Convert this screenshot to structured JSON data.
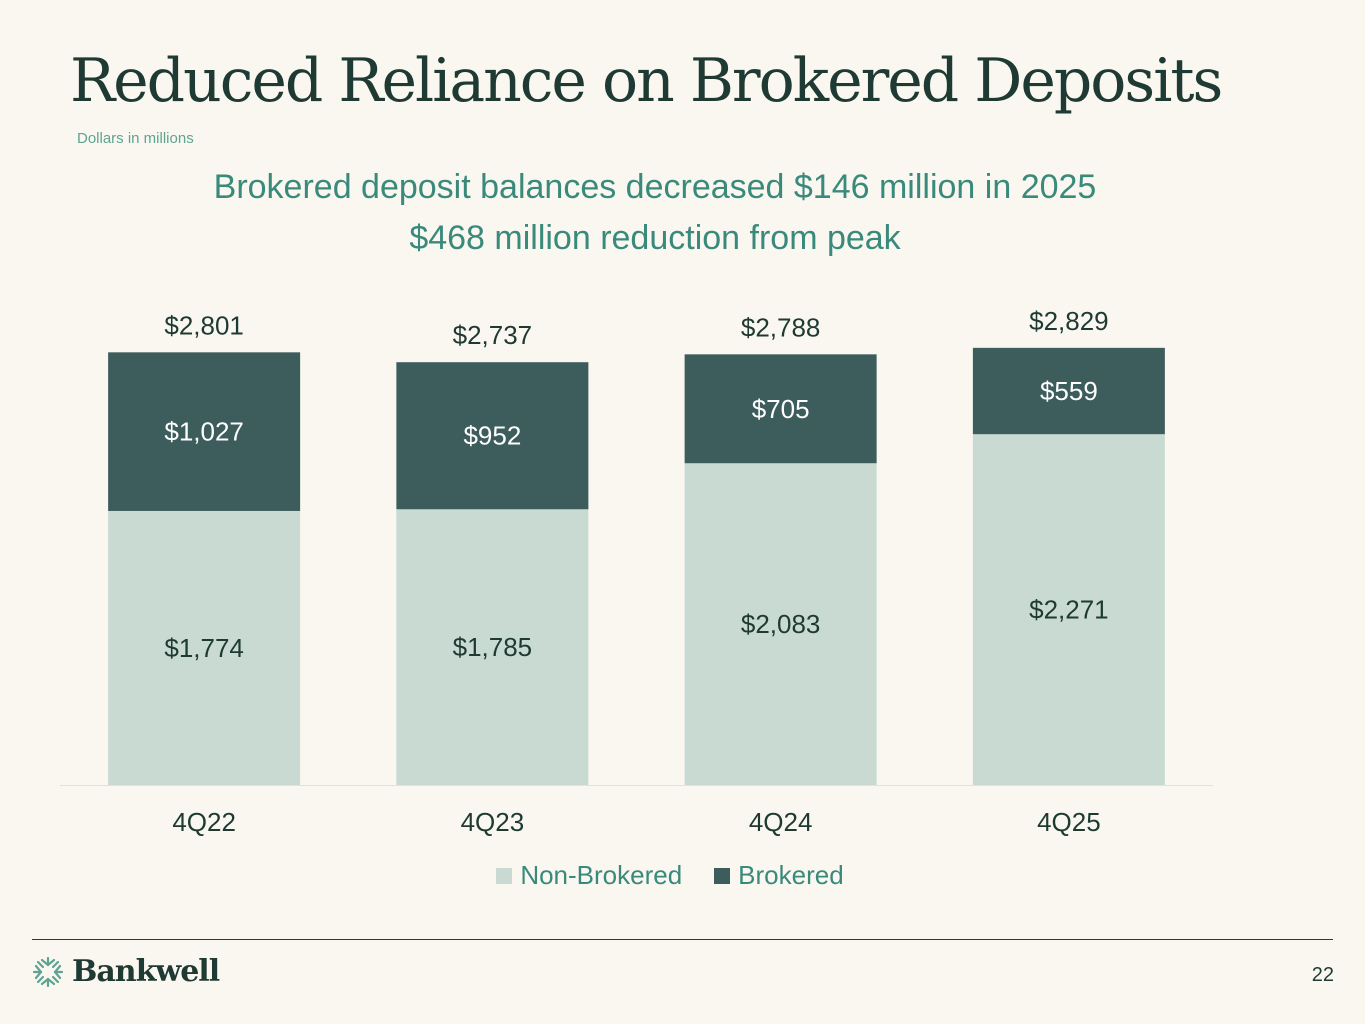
{
  "title": "Reduced Reliance on Brokered Deposits",
  "subtitle": "Dollars in millions",
  "headline_1": "Brokered deposit balances decreased $146 million in 2025",
  "headline_2": "$468 million reduction from peak",
  "colors": {
    "non_brokered": "#c8dad2",
    "brokered": "#3d5c5c",
    "text_dark": "#1e3a33",
    "accent": "#3a8a7c"
  },
  "chart_data": {
    "type": "bar",
    "stacked": true,
    "categories": [
      "4Q22",
      "4Q23",
      "4Q24",
      "4Q25"
    ],
    "series": [
      {
        "name": "Non-Brokered",
        "values": [
          1774,
          1785,
          2083,
          2271
        ],
        "labels": [
          "$1,774",
          "$1,785",
          "$2,083",
          "$2,271"
        ]
      },
      {
        "name": "Brokered",
        "values": [
          1027,
          952,
          705,
          559
        ],
        "labels": [
          "$1,027",
          "$952",
          "$705",
          "$559"
        ]
      }
    ],
    "totals": [
      2801,
      2737,
      2788,
      2829
    ],
    "total_labels": [
      "$2,801",
      "$2,737",
      "$2,788",
      "$2,829"
    ],
    "ylim": [
      0,
      2829
    ],
    "grid": false,
    "legend": "bottom-center"
  },
  "legend": {
    "non_brokered": "Non-Brokered",
    "brokered": "Brokered"
  },
  "footer": {
    "logo_text": "Bankwell",
    "logo_icon": "bankwell-emblem-icon",
    "page_number": "22"
  }
}
